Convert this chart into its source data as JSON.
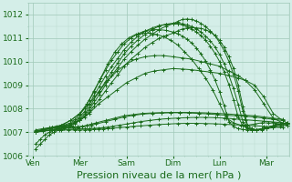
{
  "bg_color": "#d4eee8",
  "plot_bg_color": "#d4eee8",
  "grid_major_color": "#a0c8b8",
  "grid_minor_color": "#b8d8cc",
  "line_color": "#1a6b1a",
  "xlabel": "Pression niveau de la mer( hPa )",
  "xlabel_color": "#1a6b1a",
  "xlabel_fontsize": 8,
  "tick_color": "#1a6b1a",
  "tick_fontsize": 6.5,
  "ylim": [
    1006,
    1012.5
  ],
  "yticks": [
    1006,
    1007,
    1008,
    1009,
    1010,
    1011,
    1012
  ],
  "xtick_labels": [
    "Ven",
    "Mer",
    "Sam",
    "Dim",
    "Lun",
    "Mar"
  ],
  "xtick_positions": [
    0.0,
    1.0,
    2.0,
    3.0,
    4.0,
    5.0
  ],
  "xlim": [
    -0.1,
    5.5
  ],
  "series": [
    {
      "x": [
        0.05,
        0.15,
        0.25,
        0.35,
        0.45,
        0.55,
        0.65,
        0.75,
        0.85,
        0.95,
        1.05,
        1.15,
        1.25,
        1.35,
        1.55,
        1.75,
        1.95,
        2.15,
        2.35,
        2.55,
        2.75,
        2.95,
        3.15,
        3.35,
        3.55,
        3.75,
        3.95,
        4.15,
        4.35,
        4.55,
        4.75,
        4.95,
        5.15,
        5.35
      ],
      "y": [
        1006.3,
        1006.5,
        1006.7,
        1006.9,
        1007.0,
        1007.1,
        1007.15,
        1007.2,
        1007.2,
        1007.2,
        1007.25,
        1007.3,
        1007.35,
        1007.4,
        1007.5,
        1007.6,
        1007.7,
        1007.75,
        1007.8,
        1007.82,
        1007.83,
        1007.84,
        1007.84,
        1007.84,
        1007.83,
        1007.82,
        1007.8,
        1007.78,
        1007.75,
        1007.72,
        1007.7,
        1007.65,
        1007.6,
        1007.55
      ]
    },
    {
      "x": [
        0.05,
        0.15,
        0.25,
        0.35,
        0.45,
        0.55,
        0.65,
        0.75,
        0.85,
        0.95,
        1.05,
        1.15,
        1.25,
        1.35,
        1.55,
        1.75,
        1.95,
        2.15,
        2.35,
        2.55,
        2.75,
        2.95,
        3.15,
        3.35,
        3.55,
        3.75,
        3.95,
        4.15,
        4.35,
        4.55,
        4.75,
        4.95,
        5.15,
        5.35
      ],
      "y": [
        1006.5,
        1006.7,
        1006.9,
        1007.0,
        1007.1,
        1007.15,
        1007.2,
        1007.22,
        1007.23,
        1007.24,
        1007.25,
        1007.27,
        1007.3,
        1007.35,
        1007.45,
        1007.55,
        1007.65,
        1007.72,
        1007.77,
        1007.8,
        1007.82,
        1007.83,
        1007.83,
        1007.82,
        1007.8,
        1007.78,
        1007.75,
        1007.72,
        1007.7,
        1007.68,
        1007.65,
        1007.6,
        1007.55,
        1007.5
      ]
    },
    {
      "x": [
        0.05,
        0.2,
        0.4,
        0.6,
        0.75,
        0.9,
        1.0,
        1.1,
        1.2,
        1.3,
        1.4,
        1.5,
        1.6,
        1.7,
        1.85,
        2.0,
        2.15,
        2.3,
        2.5,
        2.7,
        2.9,
        3.1,
        3.3,
        3.5,
        3.7,
        3.9,
        4.1,
        4.3,
        4.55,
        4.75,
        4.95,
        5.15,
        5.35
      ],
      "y": [
        1007.0,
        1007.05,
        1007.1,
        1007.12,
        1007.13,
        1007.14,
        1007.15,
        1007.15,
        1007.16,
        1007.17,
        1007.18,
        1007.2,
        1007.22,
        1007.25,
        1007.3,
        1007.35,
        1007.4,
        1007.45,
        1007.5,
        1007.55,
        1007.58,
        1007.6,
        1007.62,
        1007.63,
        1007.63,
        1007.62,
        1007.6,
        1007.57,
        1007.53,
        1007.5,
        1007.47,
        1007.44,
        1007.4
      ]
    },
    {
      "x": [
        0.05,
        0.2,
        0.4,
        0.6,
        0.75,
        0.9,
        1.0,
        1.1,
        1.2,
        1.3,
        1.4,
        1.5,
        1.6,
        1.7,
        1.85,
        2.0,
        2.15,
        2.3,
        2.5,
        2.7,
        2.9,
        3.1,
        3.3,
        3.5,
        3.7,
        3.9,
        4.1,
        4.3,
        4.55,
        4.75,
        4.95,
        5.15,
        5.35
      ],
      "y": [
        1007.0,
        1007.05,
        1007.08,
        1007.09,
        1007.1,
        1007.1,
        1007.1,
        1007.1,
        1007.11,
        1007.12,
        1007.13,
        1007.14,
        1007.15,
        1007.17,
        1007.2,
        1007.22,
        1007.25,
        1007.27,
        1007.3,
        1007.33,
        1007.35,
        1007.37,
        1007.38,
        1007.38,
        1007.37,
        1007.36,
        1007.34,
        1007.32,
        1007.3,
        1007.28,
        1007.25,
        1007.22,
        1007.2
      ]
    },
    {
      "x": [
        0.05,
        0.2,
        0.4,
        0.6,
        0.8,
        1.0,
        1.2,
        1.4,
        1.6,
        1.8,
        2.0,
        2.2,
        2.4,
        2.6,
        2.8,
        3.0,
        3.2,
        3.4,
        3.6,
        3.8,
        4.0,
        4.2,
        4.4,
        4.55,
        4.75,
        4.95,
        5.15,
        5.35,
        5.45
      ],
      "y": [
        1007.0,
        1007.1,
        1007.2,
        1007.25,
        1007.3,
        1007.5,
        1007.8,
        1008.2,
        1008.5,
        1008.8,
        1009.1,
        1009.3,
        1009.5,
        1009.6,
        1009.65,
        1009.7,
        1009.68,
        1009.65,
        1009.6,
        1009.55,
        1009.5,
        1009.4,
        1009.3,
        1009.2,
        1009.0,
        1008.5,
        1007.8,
        1007.5,
        1007.4
      ]
    },
    {
      "x": [
        0.05,
        0.2,
        0.4,
        0.6,
        0.8,
        1.0,
        1.2,
        1.4,
        1.6,
        1.8,
        2.0,
        2.2,
        2.4,
        2.6,
        2.8,
        3.0,
        3.2,
        3.4,
        3.6,
        3.8,
        4.0,
        4.2,
        4.4,
        4.55,
        4.75,
        4.95,
        5.15,
        5.35,
        5.45
      ],
      "y": [
        1007.0,
        1007.1,
        1007.2,
        1007.3,
        1007.5,
        1007.8,
        1008.2,
        1008.7,
        1009.2,
        1009.6,
        1009.9,
        1010.1,
        1010.2,
        1010.25,
        1010.25,
        1010.2,
        1010.15,
        1010.1,
        1010.0,
        1009.9,
        1009.8,
        1009.6,
        1009.4,
        1009.2,
        1008.8,
        1008.2,
        1007.6,
        1007.4,
        1007.35
      ]
    },
    {
      "x": [
        0.05,
        0.2,
        0.4,
        0.6,
        0.8,
        1.0,
        1.15,
        1.3,
        1.45,
        1.6,
        1.75,
        1.9,
        2.05,
        2.2,
        2.35,
        2.5,
        2.65,
        2.8,
        2.95,
        3.1,
        3.25,
        3.4,
        3.55,
        3.7,
        3.85,
        4.0,
        4.15,
        4.3,
        4.45,
        4.6,
        4.75,
        4.9,
        5.05,
        5.2,
        5.35,
        5.45
      ],
      "y": [
        1007.05,
        1007.1,
        1007.2,
        1007.3,
        1007.5,
        1007.8,
        1008.2,
        1008.7,
        1009.3,
        1009.9,
        1010.4,
        1010.75,
        1011.0,
        1011.15,
        1011.2,
        1011.2,
        1011.15,
        1011.05,
        1010.9,
        1010.7,
        1010.4,
        1010.1,
        1009.7,
        1009.3,
        1008.8,
        1008.2,
        1007.6,
        1007.4,
        1007.3,
        1007.3,
        1007.35,
        1007.4,
        1007.4,
        1007.38,
        1007.35,
        1007.3
      ]
    },
    {
      "x": [
        0.05,
        0.2,
        0.35,
        0.5,
        0.65,
        0.8,
        0.9,
        1.0,
        1.1,
        1.2,
        1.3,
        1.42,
        1.55,
        1.68,
        1.82,
        1.95,
        2.1,
        2.25,
        2.4,
        2.55,
        2.7,
        2.85,
        3.0,
        3.1,
        3.2,
        3.3,
        3.4,
        3.5,
        3.6,
        3.7,
        3.8,
        3.9,
        4.0,
        4.1,
        4.2,
        4.3,
        4.4,
        4.5,
        4.6,
        4.7,
        4.8,
        4.9,
        5.0,
        5.15,
        5.3,
        5.45
      ],
      "y": [
        1007.0,
        1007.1,
        1007.15,
        1007.2,
        1007.25,
        1007.3,
        1007.4,
        1007.5,
        1007.65,
        1007.85,
        1008.1,
        1008.4,
        1008.75,
        1009.1,
        1009.45,
        1009.8,
        1010.1,
        1010.35,
        1010.6,
        1010.8,
        1010.98,
        1011.1,
        1011.2,
        1011.3,
        1011.38,
        1011.42,
        1011.44,
        1011.43,
        1011.4,
        1011.35,
        1011.25,
        1011.1,
        1010.9,
        1010.6,
        1010.2,
        1009.7,
        1009.0,
        1008.1,
        1007.3,
        1007.15,
        1007.1,
        1007.1,
        1007.15,
        1007.2,
        1007.25,
        1007.3
      ]
    },
    {
      "x": [
        0.05,
        0.2,
        0.35,
        0.5,
        0.65,
        0.8,
        0.9,
        1.0,
        1.1,
        1.2,
        1.3,
        1.42,
        1.55,
        1.68,
        1.82,
        1.95,
        2.1,
        2.25,
        2.4,
        2.55,
        2.7,
        2.85,
        3.0,
        3.1,
        3.2,
        3.3,
        3.4,
        3.5,
        3.6,
        3.7,
        3.8,
        3.9,
        4.0,
        4.1,
        4.2,
        4.3,
        4.4,
        4.5,
        4.6,
        4.7,
        4.8,
        4.9,
        5.0,
        5.15,
        5.3,
        5.45
      ],
      "y": [
        1007.0,
        1007.08,
        1007.1,
        1007.15,
        1007.2,
        1007.28,
        1007.38,
        1007.52,
        1007.7,
        1007.95,
        1008.25,
        1008.6,
        1009.0,
        1009.4,
        1009.75,
        1010.1,
        1010.42,
        1010.7,
        1010.95,
        1011.15,
        1011.35,
        1011.5,
        1011.6,
        1011.7,
        1011.78,
        1011.8,
        1011.78,
        1011.72,
        1011.62,
        1011.48,
        1011.3,
        1011.1,
        1010.8,
        1010.45,
        1010.0,
        1009.45,
        1008.75,
        1007.9,
        1007.2,
        1007.1,
        1007.1,
        1007.15,
        1007.2,
        1007.28,
        1007.35,
        1007.4
      ]
    },
    {
      "x": [
        0.05,
        0.2,
        0.35,
        0.5,
        0.65,
        0.8,
        0.9,
        1.0,
        1.1,
        1.2,
        1.3,
        1.42,
        1.55,
        1.68,
        1.82,
        1.95,
        2.1,
        2.25,
        2.4,
        2.55,
        2.7,
        2.85,
        3.0,
        3.1,
        3.2,
        3.3,
        3.4,
        3.5,
        3.6,
        3.7,
        3.8,
        3.9,
        4.0,
        4.1,
        4.2,
        4.3,
        4.4,
        4.5,
        4.6,
        4.7,
        4.8,
        4.9,
        5.0,
        5.15,
        5.3,
        5.45
      ],
      "y": [
        1007.02,
        1007.1,
        1007.15,
        1007.2,
        1007.25,
        1007.3,
        1007.42,
        1007.58,
        1007.78,
        1008.05,
        1008.38,
        1008.75,
        1009.15,
        1009.55,
        1009.95,
        1010.32,
        1010.65,
        1010.92,
        1011.15,
        1011.35,
        1011.5,
        1011.58,
        1011.62,
        1011.62,
        1011.6,
        1011.55,
        1011.48,
        1011.38,
        1011.25,
        1011.08,
        1010.88,
        1010.62,
        1010.3,
        1009.9,
        1009.42,
        1008.85,
        1008.18,
        1007.45,
        1007.2,
        1007.12,
        1007.1,
        1007.12,
        1007.18,
        1007.25,
        1007.32,
        1007.38
      ]
    },
    {
      "x": [
        0.05,
        0.2,
        0.35,
        0.5,
        0.65,
        0.8,
        0.9,
        1.0,
        1.1,
        1.2,
        1.3,
        1.42,
        1.55,
        1.68,
        1.82,
        1.95,
        2.1,
        2.25,
        2.4,
        2.55,
        2.7,
        2.85,
        3.0,
        3.1,
        3.2,
        3.3,
        3.4,
        3.5,
        3.6,
        3.7,
        3.8,
        3.9,
        4.0,
        4.1,
        4.2,
        4.3,
        4.4,
        4.5,
        4.6,
        4.7,
        4.8,
        4.9,
        5.0,
        5.15,
        5.3,
        5.45
      ],
      "y": [
        1007.05,
        1007.12,
        1007.18,
        1007.22,
        1007.28,
        1007.35,
        1007.48,
        1007.65,
        1007.88,
        1008.18,
        1008.55,
        1008.95,
        1009.38,
        1009.78,
        1010.15,
        1010.5,
        1010.82,
        1011.08,
        1011.28,
        1011.42,
        1011.52,
        1011.58,
        1011.6,
        1011.6,
        1011.55,
        1011.48,
        1011.38,
        1011.25,
        1011.1,
        1010.9,
        1010.65,
        1010.35,
        1010.0,
        1009.55,
        1009.02,
        1008.38,
        1007.65,
        1007.28,
        1007.15,
        1007.1,
        1007.1,
        1007.12,
        1007.18,
        1007.25,
        1007.32,
        1007.38
      ]
    },
    {
      "x": [
        0.05,
        0.2,
        0.35,
        0.5,
        0.65,
        0.8,
        0.9,
        1.0,
        1.1,
        1.2,
        1.3,
        1.42,
        1.55,
        1.68,
        1.82,
        1.95,
        2.1,
        2.25,
        2.4,
        2.55,
        2.7,
        2.85,
        3.0,
        3.1,
        3.2,
        3.3,
        3.4,
        3.5,
        3.6,
        3.7,
        3.8,
        3.9,
        4.0,
        4.1,
        4.15,
        4.2,
        4.3,
        4.4,
        4.5,
        4.6,
        4.7,
        4.8,
        4.9,
        5.0,
        5.15,
        5.3,
        5.45
      ],
      "y": [
        1007.1,
        1007.15,
        1007.2,
        1007.25,
        1007.3,
        1007.4,
        1007.55,
        1007.75,
        1008.02,
        1008.35,
        1008.75,
        1009.18,
        1009.62,
        1010.05,
        1010.42,
        1010.75,
        1011.0,
        1011.18,
        1011.3,
        1011.35,
        1011.35,
        1011.32,
        1011.25,
        1011.18,
        1011.08,
        1010.95,
        1010.78,
        1010.58,
        1010.32,
        1010.02,
        1009.65,
        1009.22,
        1008.72,
        1008.12,
        1007.78,
        1007.45,
        1007.25,
        1007.15,
        1007.12,
        1007.1,
        1007.1,
        1007.12,
        1007.15,
        1007.2,
        1007.28,
        1007.35,
        1007.4
      ]
    }
  ]
}
